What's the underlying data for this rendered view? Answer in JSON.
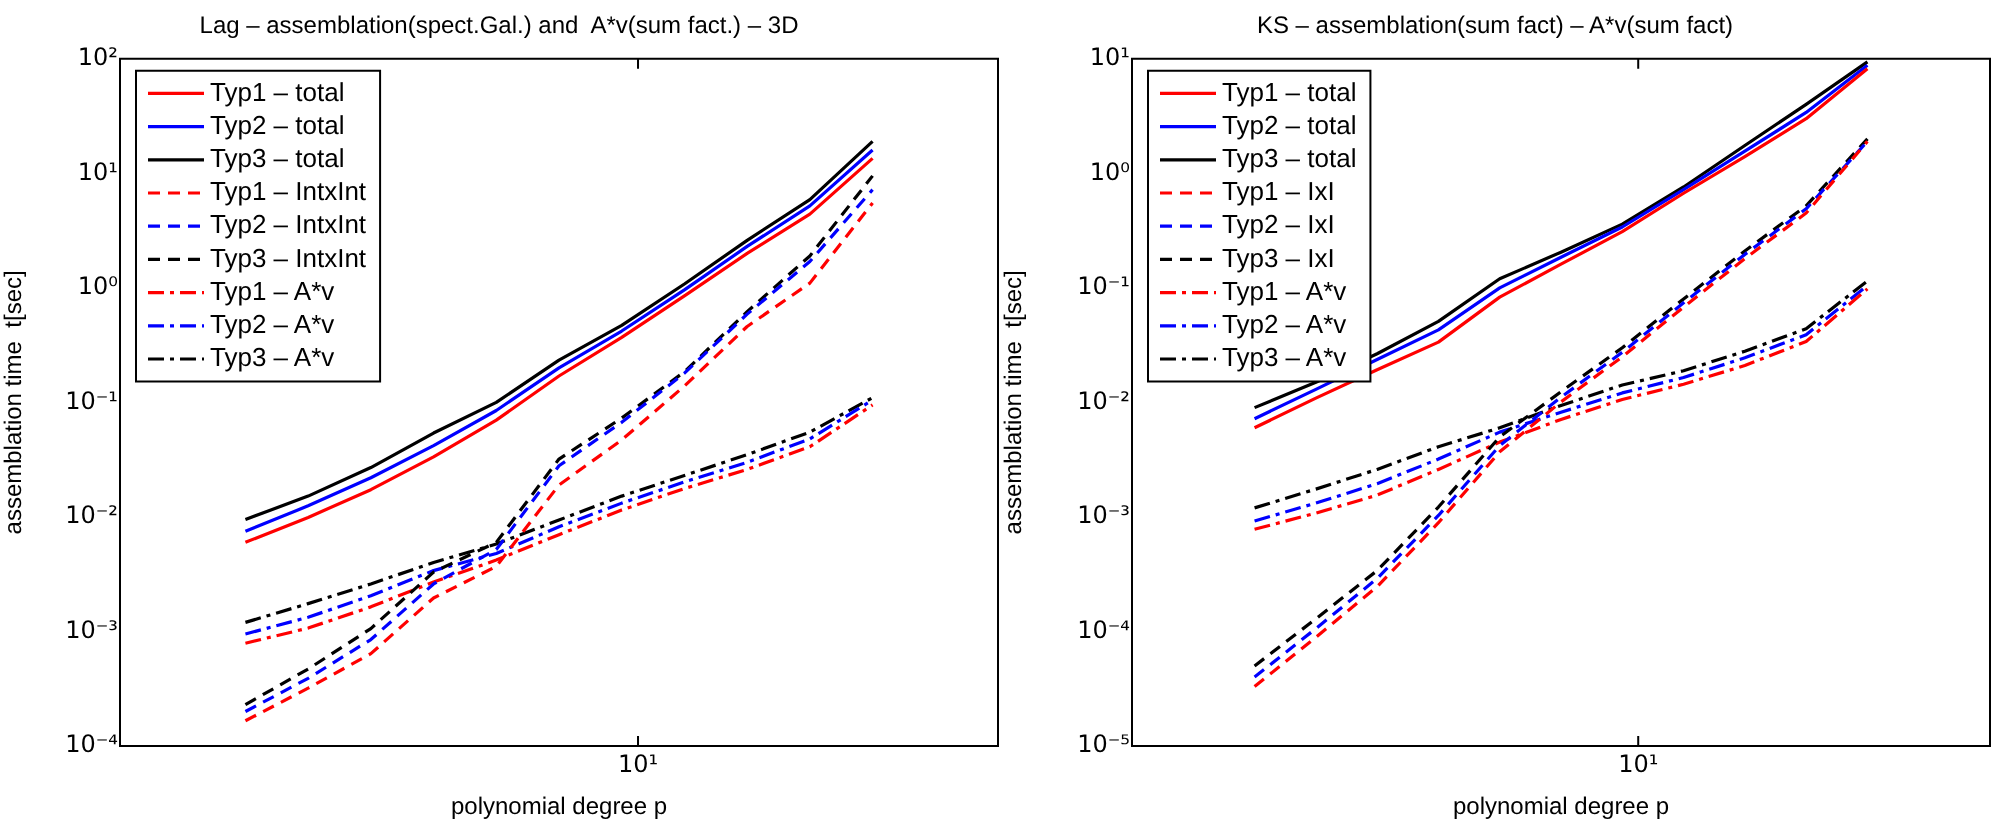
{
  "chart_data": [
    {
      "type": "line",
      "title": "Lag – assemblation(spect.Gal.) and  A*v(sum fact.) – 3D",
      "xlabel": "polynomial degree p",
      "ylabel": "assemblation time  t[sec]",
      "log": "y",
      "legend": "top left",
      "grid": false,
      "marker": "none",
      "annotations": [
        "10¹"
      ],
      "ylim": [
        0.0001,
        100
      ],
      "yticks": [
        {
          "value": 0.0001,
          "label": "10⁻⁴"
        },
        {
          "value": 0.001,
          "label": "10⁻³"
        },
        {
          "value": 0.01,
          "label": "10⁻²"
        },
        {
          "value": 0.1,
          "label": "10⁻¹"
        },
        {
          "value": 1,
          "label": "10⁰"
        },
        {
          "value": 10,
          "label": "10¹"
        },
        {
          "value": 100,
          "label": "10²"
        }
      ],
      "categories": [
        null,
        null,
        null,
        null,
        null,
        null,
        null,
        null,
        null,
        null,
        null
      ],
      "series": [
        {
          "name": "Typ1 – total",
          "color": "#ff0000",
          "line_style": "solid",
          "values": [
            0.006,
            0.0099,
            0.0173,
            0.0334,
            0.07,
            0.17,
            0.37,
            0.85,
            2.0,
            4.4,
            13.5
          ]
        },
        {
          "name": "Typ2 – total",
          "color": "#0000ff",
          "line_style": "solid",
          "values": [
            0.0075,
            0.0125,
            0.022,
            0.042,
            0.085,
            0.2,
            0.42,
            0.96,
            2.3,
            5.2,
            16
          ]
        },
        {
          "name": "Typ3 – total",
          "color": "#000000",
          "line_style": "solid",
          "values": [
            0.0095,
            0.0152,
            0.027,
            0.054,
            0.1,
            0.234,
            0.47,
            1.08,
            2.6,
            5.9,
            19
          ]
        },
        {
          "name": "Typ1 – IntxInt",
          "color": "#ff0000",
          "line_style": "dashed",
          "values": [
            0.000166,
            0.00032,
            0.00064,
            0.00196,
            0.0037,
            0.019,
            0.047,
            0.139,
            0.46,
            1.1,
            5.5
          ]
        },
        {
          "name": "Typ2 – IntxInt",
          "color": "#0000ff",
          "line_style": "dashed",
          "values": [
            0.0002,
            0.00039,
            0.00085,
            0.0026,
            0.0052,
            0.028,
            0.067,
            0.18,
            0.59,
            1.7,
            7.2
          ]
        },
        {
          "name": "Typ3 – IntxInt",
          "color": "#000000",
          "line_style": "dashed",
          "values": [
            0.00023,
            0.00047,
            0.00106,
            0.0033,
            0.006,
            0.032,
            0.073,
            0.185,
            0.62,
            1.9,
            9.5
          ]
        },
        {
          "name": "Typ1 – A*v",
          "color": "#ff0000",
          "line_style": "dashdot",
          "values": [
            0.00079,
            0.00107,
            0.00164,
            0.0027,
            0.0042,
            0.007,
            0.0115,
            0.0177,
            0.026,
            0.041,
            0.095
          ]
        },
        {
          "name": "Typ2 – A*v",
          "color": "#0000ff",
          "line_style": "dashdot",
          "values": [
            0.00095,
            0.00133,
            0.00205,
            0.0034,
            0.0048,
            0.0082,
            0.0132,
            0.0202,
            0.03,
            0.048,
            0.105
          ]
        },
        {
          "name": "Typ3 – A*v",
          "color": "#000000",
          "line_style": "dashdot",
          "values": [
            0.0012,
            0.00175,
            0.0026,
            0.004,
            0.0058,
            0.0094,
            0.0152,
            0.023,
            0.035,
            0.055,
            0.11
          ]
        }
      ]
    },
    {
      "type": "line",
      "title": "KS – assemblation(sum fact) – A*v(sum fact)",
      "xlabel": "polynomial degree p",
      "ylabel": "assemblation time  t[sec]",
      "log": "y",
      "legend": "top left",
      "grid": false,
      "marker": "none",
      "annotations": [
        "10¹"
      ],
      "ylim": [
        1e-05,
        10
      ],
      "yticks": [
        {
          "value": 1e-05,
          "label": "10⁻⁵"
        },
        {
          "value": 0.0001,
          "label": "10⁻⁴"
        },
        {
          "value": 0.001,
          "label": "10⁻³"
        },
        {
          "value": 0.01,
          "label": "10⁻²"
        },
        {
          "value": 0.1,
          "label": "10⁻¹"
        },
        {
          "value": 1,
          "label": "10⁰"
        },
        {
          "value": 10,
          "label": "10¹"
        }
      ],
      "categories": [
        null,
        null,
        null,
        null,
        null,
        null,
        null,
        null,
        null,
        null,
        null
      ],
      "series": [
        {
          "name": "Typ1 – total",
          "color": "#ff0000",
          "line_style": "solid",
          "values": [
            0.006,
            0.0109,
            0.0193,
            0.0336,
            0.083,
            0.161,
            0.31,
            0.67,
            1.4,
            3.0,
            8.2
          ]
        },
        {
          "name": "Typ2 – total",
          "color": "#0000ff",
          "line_style": "solid",
          "values": [
            0.0072,
            0.013,
            0.0237,
            0.043,
            0.1,
            0.185,
            0.34,
            0.72,
            1.56,
            3.4,
            8.8
          ]
        },
        {
          "name": "Typ3 – total",
          "color": "#000000",
          "line_style": "solid",
          "values": [
            0.009,
            0.015,
            0.0266,
            0.051,
            0.12,
            0.205,
            0.36,
            0.76,
            1.75,
            4.0,
            9.4
          ]
        },
        {
          "name": "Typ1 – IxI",
          "color": "#ff0000",
          "line_style": "dashed",
          "values": [
            3.3e-05,
            8.9e-05,
            0.000246,
            0.00089,
            0.0037,
            0.0101,
            0.025,
            0.068,
            0.18,
            0.45,
            1.9
          ]
        },
        {
          "name": "Typ2 – IxI",
          "color": "#0000ff",
          "line_style": "dashed",
          "values": [
            4e-05,
            0.000106,
            0.00029,
            0.00103,
            0.0042,
            0.0111,
            0.0274,
            0.074,
            0.196,
            0.49,
            1.9
          ]
        },
        {
          "name": "Typ3 – IxI",
          "color": "#000000",
          "line_style": "dashed",
          "values": [
            5e-05,
            0.000129,
            0.00034,
            0.00122,
            0.005,
            0.0124,
            0.03,
            0.08,
            0.21,
            0.52,
            2.0
          ]
        },
        {
          "name": "Typ1 – A*v",
          "color": "#ff0000",
          "line_style": "dashdot",
          "values": [
            0.00078,
            0.00108,
            0.00155,
            0.0026,
            0.0045,
            0.0071,
            0.0106,
            0.0144,
            0.021,
            0.034,
            0.098
          ]
        },
        {
          "name": "Typ2 – A*v",
          "color": "#0000ff",
          "line_style": "dashdot",
          "values": [
            0.00092,
            0.00132,
            0.00195,
            0.0032,
            0.0055,
            0.0082,
            0.0121,
            0.0165,
            0.0245,
            0.039,
            0.105
          ]
        },
        {
          "name": "Typ3 – A*v",
          "color": "#000000",
          "line_style": "dashdot",
          "values": [
            0.0012,
            0.00175,
            0.0026,
            0.0041,
            0.006,
            0.0094,
            0.0142,
            0.0189,
            0.028,
            0.044,
            0.115
          ]
        }
      ]
    }
  ]
}
